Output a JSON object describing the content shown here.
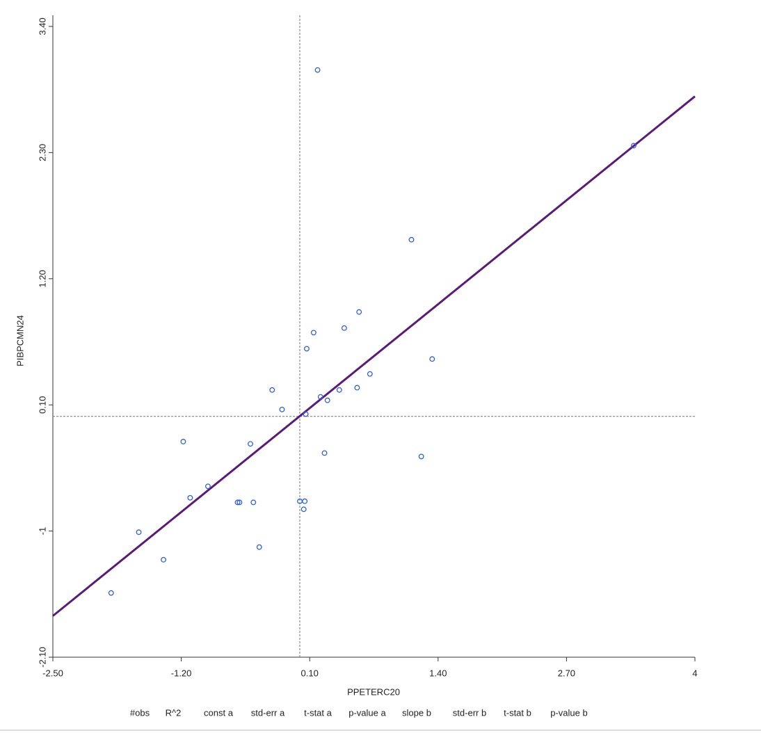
{
  "chart_data": {
    "type": "scatter",
    "x_label": "PPETERC20",
    "y_label": "PIBPCMN24",
    "xlim": [
      -2.5,
      4
    ],
    "ylim": [
      -2.1,
      3.4
    ],
    "xticks": [
      {
        "value": -2.5,
        "label": "-2.50"
      },
      {
        "value": -1.2,
        "label": "-1.20"
      },
      {
        "value": 0.1,
        "label": "0.10"
      },
      {
        "value": 1.4,
        "label": "1.40"
      },
      {
        "value": 2.7,
        "label": "2.70"
      },
      4
    ],
    "yticks": [
      {
        "value": -2.1,
        "label": "-2.10"
      },
      -1,
      {
        "value": 0.1,
        "label": "0.10"
      },
      {
        "value": 1.2,
        "label": "1.20"
      },
      {
        "value": 2.3,
        "label": "2.30"
      },
      {
        "value": 3.4,
        "label": "3.40"
      }
    ],
    "color": "#2f5fe8",
    "x": [
      0.18,
      3.38,
      1.13,
      0.6,
      0.45,
      0.14,
      0.07,
      1.34,
      0.71,
      -0.28,
      0.58,
      0.4,
      0.21,
      0.28,
      -0.18,
      0.06,
      -1.18,
      -0.5,
      0.25,
      1.23,
      -0.93,
      -1.11,
      -0.63,
      -0.61,
      -0.47,
      0.0,
      0.05,
      0.04,
      -1.63,
      -0.41,
      -1.38,
      -1.91
    ],
    "values": [
      3.02,
      2.36,
      1.54,
      0.91,
      0.77,
      0.73,
      0.59,
      0.5,
      0.37,
      0.23,
      0.25,
      0.23,
      0.17,
      0.14,
      0.06,
      0.02,
      -0.22,
      -0.24,
      -0.32,
      -0.35,
      -0.61,
      -0.71,
      -0.75,
      -0.75,
      -0.75,
      -0.74,
      -0.74,
      -0.81,
      -1.01,
      -1.14,
      -1.25,
      -1.54
    ],
    "fit_line": {
      "color": "#5b1a7a",
      "x": [
        -2.5,
        4
      ],
      "y": [
        -1.74,
        2.79
      ]
    },
    "mean_lines": {
      "x": 0,
      "y": 0
    },
    "stats_table": {
      "columns": [
        "#obs",
        "R^2",
        "const a",
        "std-err a",
        "t-stat a",
        "p-value a",
        "slope b",
        "std-err b",
        "t-stat b",
        "p-value b"
      ]
    }
  }
}
